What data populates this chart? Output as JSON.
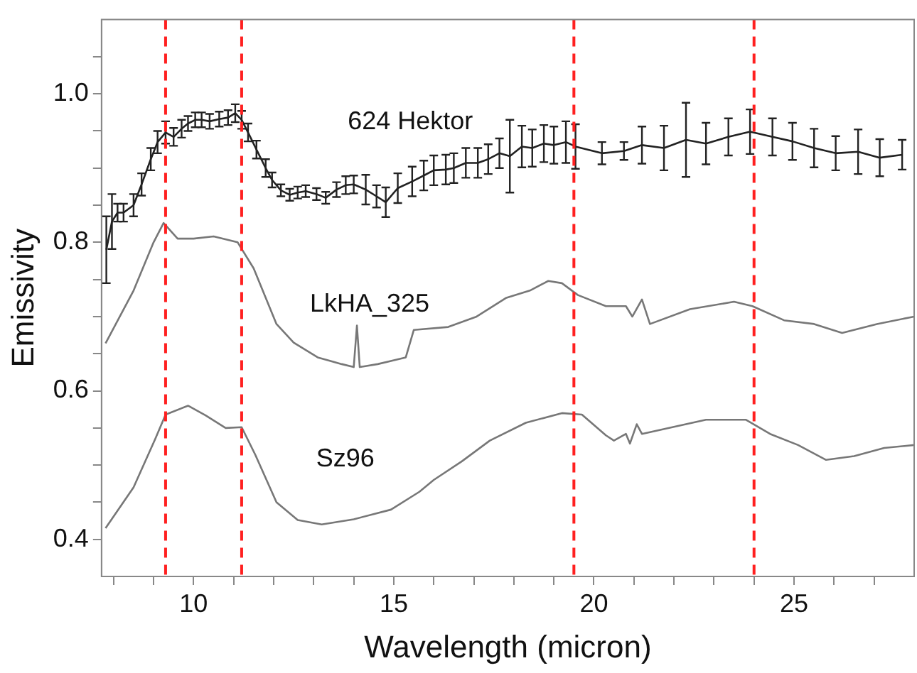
{
  "chart_data": {
    "type": "line",
    "xlabel": "Wavelength (micron)",
    "ylabel": "Emissivity",
    "xlim": [
      7.7,
      28
    ],
    "ylim": [
      0.35,
      1.1
    ],
    "xticks": [
      {
        "value": 8,
        "label": null
      },
      {
        "value": 9,
        "label": null
      },
      10,
      {
        "value": 11,
        "label": null
      },
      {
        "value": 12,
        "label": null
      },
      {
        "value": 13,
        "label": null
      },
      {
        "value": 14,
        "label": null
      },
      15,
      {
        "value": 16,
        "label": null
      },
      {
        "value": 17,
        "label": null
      },
      {
        "value": 18,
        "label": null
      },
      {
        "value": 19,
        "label": null
      },
      20,
      {
        "value": 21,
        "label": null
      },
      {
        "value": 22,
        "label": null
      },
      {
        "value": 23,
        "label": null
      },
      {
        "value": 24,
        "label": null
      },
      25,
      {
        "value": 26,
        "label": null
      },
      {
        "value": 27,
        "label": null
      }
    ],
    "yticks": [
      {
        "value": 0.4,
        "label": "0.4"
      },
      {
        "value": 0.45,
        "label": null
      },
      {
        "value": 0.5,
        "label": null
      },
      {
        "value": 0.55,
        "label": null
      },
      {
        "value": 0.6,
        "label": "0.6"
      },
      {
        "value": 0.65,
        "label": null
      },
      {
        "value": 0.7,
        "label": null
      },
      {
        "value": 0.75,
        "label": null
      },
      {
        "value": 0.8,
        "label": "0.8"
      },
      {
        "value": 0.85,
        "label": null
      },
      {
        "value": 0.9,
        "label": null
      },
      {
        "value": 0.95,
        "label": null
      },
      {
        "value": 1,
        "label": "1.0"
      },
      {
        "value": 1.05,
        "label": null
      }
    ],
    "grid": false,
    "legend": false,
    "marker": "none",
    "line_style": "solid",
    "series": [
      {
        "name": "624 Hektor",
        "color": "#222222",
        "x": [
          7.82,
          7.96,
          8.1,
          8.25,
          8.5,
          8.7,
          8.93,
          9.1,
          9.3,
          9.5,
          9.7,
          9.86,
          10.04,
          10.2,
          10.4,
          10.64,
          10.86,
          11.04,
          11.2,
          11.36,
          11.57,
          11.8,
          11.96,
          12.18,
          12.4,
          12.6,
          12.8,
          13.07,
          13.3,
          13.57,
          13.8,
          14.0,
          14.3,
          14.57,
          14.8,
          15.1,
          15.46,
          15.75,
          16.0,
          16.3,
          16.5,
          16.8,
          17.1,
          17.36,
          17.64,
          17.9,
          18.2,
          18.46,
          18.75,
          19.0,
          19.3,
          19.54,
          20.2,
          20.75,
          21.2,
          21.75,
          22.3,
          22.8,
          23.36,
          23.9,
          24.46,
          24.96,
          25.5,
          26.04,
          26.6,
          27.14,
          27.7
        ],
        "values": [
          0.79,
          0.828,
          0.84,
          0.84,
          0.85,
          0.878,
          0.912,
          0.935,
          0.948,
          0.942,
          0.953,
          0.96,
          0.965,
          0.965,
          0.963,
          0.966,
          0.968,
          0.974,
          0.965,
          0.948,
          0.925,
          0.9,
          0.884,
          0.87,
          0.864,
          0.867,
          0.869,
          0.865,
          0.86,
          0.871,
          0.877,
          0.878,
          0.871,
          0.862,
          0.854,
          0.873,
          0.882,
          0.89,
          0.897,
          0.898,
          0.9,
          0.907,
          0.907,
          0.912,
          0.92,
          0.916,
          0.929,
          0.927,
          0.933,
          0.931,
          0.935,
          0.929,
          0.92,
          0.923,
          0.931,
          0.927,
          0.938,
          0.933,
          0.942,
          0.949,
          0.942,
          0.936,
          0.927,
          0.92,
          0.922,
          0.914,
          0.918
        ],
        "errors": [
          0.045,
          0.037,
          0.012,
          0.012,
          0.015,
          0.015,
          0.015,
          0.015,
          0.015,
          0.012,
          0.012,
          0.01,
          0.01,
          0.01,
          0.01,
          0.01,
          0.01,
          0.012,
          0.012,
          0.012,
          0.012,
          0.012,
          0.01,
          0.008,
          0.008,
          0.008,
          0.008,
          0.008,
          0.008,
          0.01,
          0.012,
          0.012,
          0.02,
          0.015,
          0.02,
          0.02,
          0.02,
          0.02,
          0.02,
          0.02,
          0.02,
          0.02,
          0.02,
          0.02,
          0.02,
          0.049,
          0.028,
          0.025,
          0.025,
          0.025,
          0.028,
          0.03,
          0.015,
          0.012,
          0.025,
          0.03,
          0.05,
          0.028,
          0.025,
          0.03,
          0.025,
          0.025,
          0.026,
          0.023,
          0.03,
          0.025,
          0.02
        ]
      },
      {
        "name": "LkHA_325",
        "color": "#777777",
        "x": [
          7.8,
          8.5,
          9.0,
          9.25,
          9.6,
          10.0,
          10.5,
          11.1,
          11.5,
          12.07,
          12.5,
          13.1,
          13.7,
          14.0,
          14.08,
          14.15,
          14.6,
          15.3,
          15.5,
          16.36,
          17.07,
          17.8,
          18.4,
          18.86,
          19.2,
          19.6,
          20.3,
          20.8,
          20.96,
          21.2,
          21.4,
          22.4,
          23.5,
          23.96,
          24.75,
          25.5,
          26.2,
          27.07,
          28.0
        ],
        "values": [
          0.664,
          0.735,
          0.8,
          0.826,
          0.805,
          0.805,
          0.808,
          0.8,
          0.765,
          0.69,
          0.665,
          0.645,
          0.636,
          0.632,
          0.688,
          0.632,
          0.636,
          0.645,
          0.682,
          0.686,
          0.7,
          0.725,
          0.735,
          0.748,
          0.745,
          0.729,
          0.714,
          0.714,
          0.7,
          0.723,
          0.69,
          0.71,
          0.72,
          0.714,
          0.695,
          0.69,
          0.678,
          0.69,
          0.7
        ]
      },
      {
        "name": "Sz96",
        "color": "#777777",
        "x": [
          7.8,
          8.5,
          9.04,
          9.3,
          9.86,
          10.3,
          10.8,
          11.2,
          11.54,
          12.07,
          12.6,
          13.2,
          14.0,
          14.93,
          15.64,
          16.0,
          16.7,
          17.4,
          18.3,
          19.2,
          19.7,
          20.3,
          20.5,
          20.8,
          20.9,
          21.07,
          21.2,
          21.7,
          22.8,
          23.8,
          24.4,
          25.1,
          25.8,
          26.5,
          27.25,
          28.0
        ],
        "values": [
          0.415,
          0.47,
          0.535,
          0.568,
          0.58,
          0.567,
          0.55,
          0.551,
          0.514,
          0.45,
          0.426,
          0.42,
          0.427,
          0.44,
          0.464,
          0.48,
          0.505,
          0.533,
          0.557,
          0.57,
          0.568,
          0.54,
          0.533,
          0.542,
          0.529,
          0.555,
          0.542,
          0.548,
          0.561,
          0.561,
          0.542,
          0.527,
          0.507,
          0.512,
          0.523,
          0.527
        ]
      }
    ],
    "ref_lines": [
      {
        "axis": "x",
        "value": 9.3,
        "color": "#ff2020",
        "line_style": "dashed"
      },
      {
        "axis": "x",
        "value": 11.2,
        "color": "#ff2020",
        "line_style": "dashed"
      },
      {
        "axis": "x",
        "value": 19.5,
        "color": "#ff2020",
        "line_style": "dashed"
      },
      {
        "axis": "x",
        "value": 24.0,
        "color": "#ff2020",
        "line_style": "dashed"
      }
    ]
  }
}
